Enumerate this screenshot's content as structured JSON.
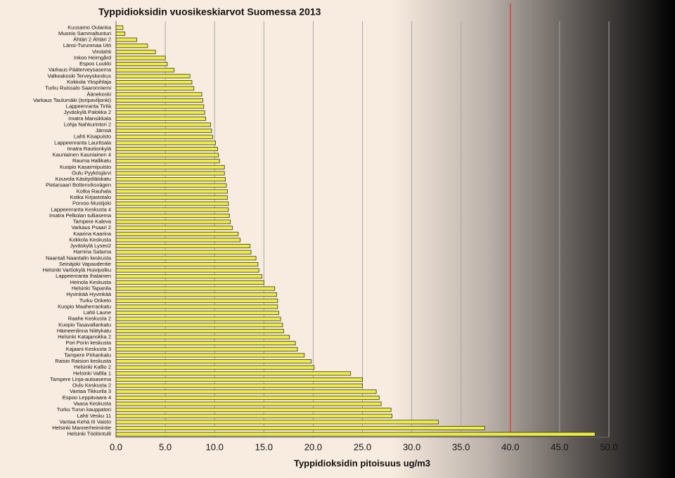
{
  "chart_data": {
    "type": "barh",
    "title": "Typpidioksidin vuosikeskiarvot Suomessa 2013",
    "x_label": "Typpidioksidin pitoisuus ug/m3",
    "categories": [
      "Kuusamo Oulanka",
      "Muonio Sammaltunturi",
      "Ähtäri 2 Ähtäri 2",
      "Länsi-Turunmaa Utö",
      "Virolahti",
      "Inkoo Heimgård",
      "Espoo Luukki",
      "Varkaus Pääterveysasema",
      "Valkeakoski Terveyskeskus",
      "Kokkola Ykspihlaja",
      "Turku Ruissalo Saaronniemi",
      "Äänekoski",
      "Varkaus Taulumäki (toripaviljonki)",
      "Lappeenranta Tirilä",
      "Jyväskylä Palokka 2",
      "Imatra Mansikkala",
      "Lohja Nahkurintori 2",
      "Jämsä",
      "Lahti Kisapuisto",
      "Lappeenranta Lauritsala",
      "Imatra Rautionkylä",
      "Kauniainen Kauniainen 4",
      "Rauma Hallikatu",
      "Kuopio Kasarmipuisto",
      "Oulu Pyykösjärvi",
      "Kouvola Käsityöläiskatu",
      "Pietarsaari Bottenviksvägen",
      "Kotka Rauhala",
      "Kotka Kirjastotalo",
      "Porvoo Mustijoki",
      "Lappeenranta Keskusta 4",
      "Imatra Pelkolan tulliasema",
      "Tampere Kaleva",
      "Varkaus Psaari 2",
      "Kaarina Kaarina",
      "Kokkola Keskusta",
      "Jyväskylä Lyseo2",
      "Hamina Satama",
      "Naantali Naantalin keskusta",
      "Seinäjoki Vapaudentie",
      "Helsinki Vartiokylä Huivipolku",
      "Lappeenranta Ihalainen",
      "Heinola Keskusta",
      "Helsinki Tapanila",
      "Hyvinkää Hyvinkää",
      "Turku Oriketo",
      "Kuopio Maaherrankatu",
      "Lahti Laune",
      "Raahe Keskusta 2",
      "Kuopio Tasavallankatu",
      "Hämeenlinna Niittykatu",
      "Helsinki Katajanokka 2",
      "Pori Porin keskusta",
      "Kajaani Keskusta 3",
      "Tampere Pirkankatu",
      "Raisio Raision keskusta",
      "Helsinki Kallio 2",
      "Helsinki Vallila 1",
      "Tampere Linja-autoasema",
      "Oulu Keskusta 2",
      "Vantaa Tikkurila 3",
      "Espoo Leppävaara 4",
      "Vaasa Keskusta",
      "Turku Turun kauppatori",
      "Lahti Vesku 11",
      "Vantaa Kehä III Vaisto",
      "Helsinki Mannerheimintie",
      "Helsinki Töölöntulli"
    ],
    "values": [
      0.7,
      0.9,
      2.1,
      3.2,
      4.0,
      5.0,
      5.2,
      5.9,
      7.5,
      7.7,
      7.9,
      8.7,
      8.8,
      8.9,
      9.0,
      9.1,
      9.6,
      9.7,
      9.8,
      10.1,
      10.3,
      10.4,
      10.5,
      11.0,
      11.0,
      11.1,
      11.2,
      11.3,
      11.3,
      11.4,
      11.4,
      11.5,
      11.6,
      11.8,
      12.4,
      12.6,
      13.6,
      13.7,
      14.2,
      14.4,
      14.5,
      14.8,
      15.0,
      16.1,
      16.3,
      16.4,
      16.4,
      16.5,
      16.7,
      16.9,
      17.0,
      17.6,
      18.2,
      18.4,
      19.1,
      19.8,
      20.1,
      23.8,
      25.0,
      25.0,
      26.4,
      26.7,
      26.9,
      27.9,
      28.0,
      32.7,
      37.4,
      48.6
    ],
    "color": "#f0ee3c",
    "xlim": [
      0,
      50
    ],
    "xticks": [
      {
        "value": 0,
        "label": "0.0"
      },
      {
        "value": 5,
        "label": "5.0"
      },
      {
        "value": 10,
        "label": "10.0"
      },
      {
        "value": 15,
        "label": "15.0"
      },
      {
        "value": 20,
        "label": "20.0"
      },
      {
        "value": 25,
        "label": "25.0"
      },
      {
        "value": 30,
        "label": "30.0"
      },
      {
        "value": 35,
        "label": "35.0"
      },
      {
        "value": 40,
        "label": "40.0"
      },
      {
        "value": 45,
        "label": "45.0"
      },
      {
        "value": 50,
        "label": "50.0"
      }
    ],
    "grid": true,
    "reference_line": {
      "value": 40,
      "color": "#e04040"
    }
  }
}
